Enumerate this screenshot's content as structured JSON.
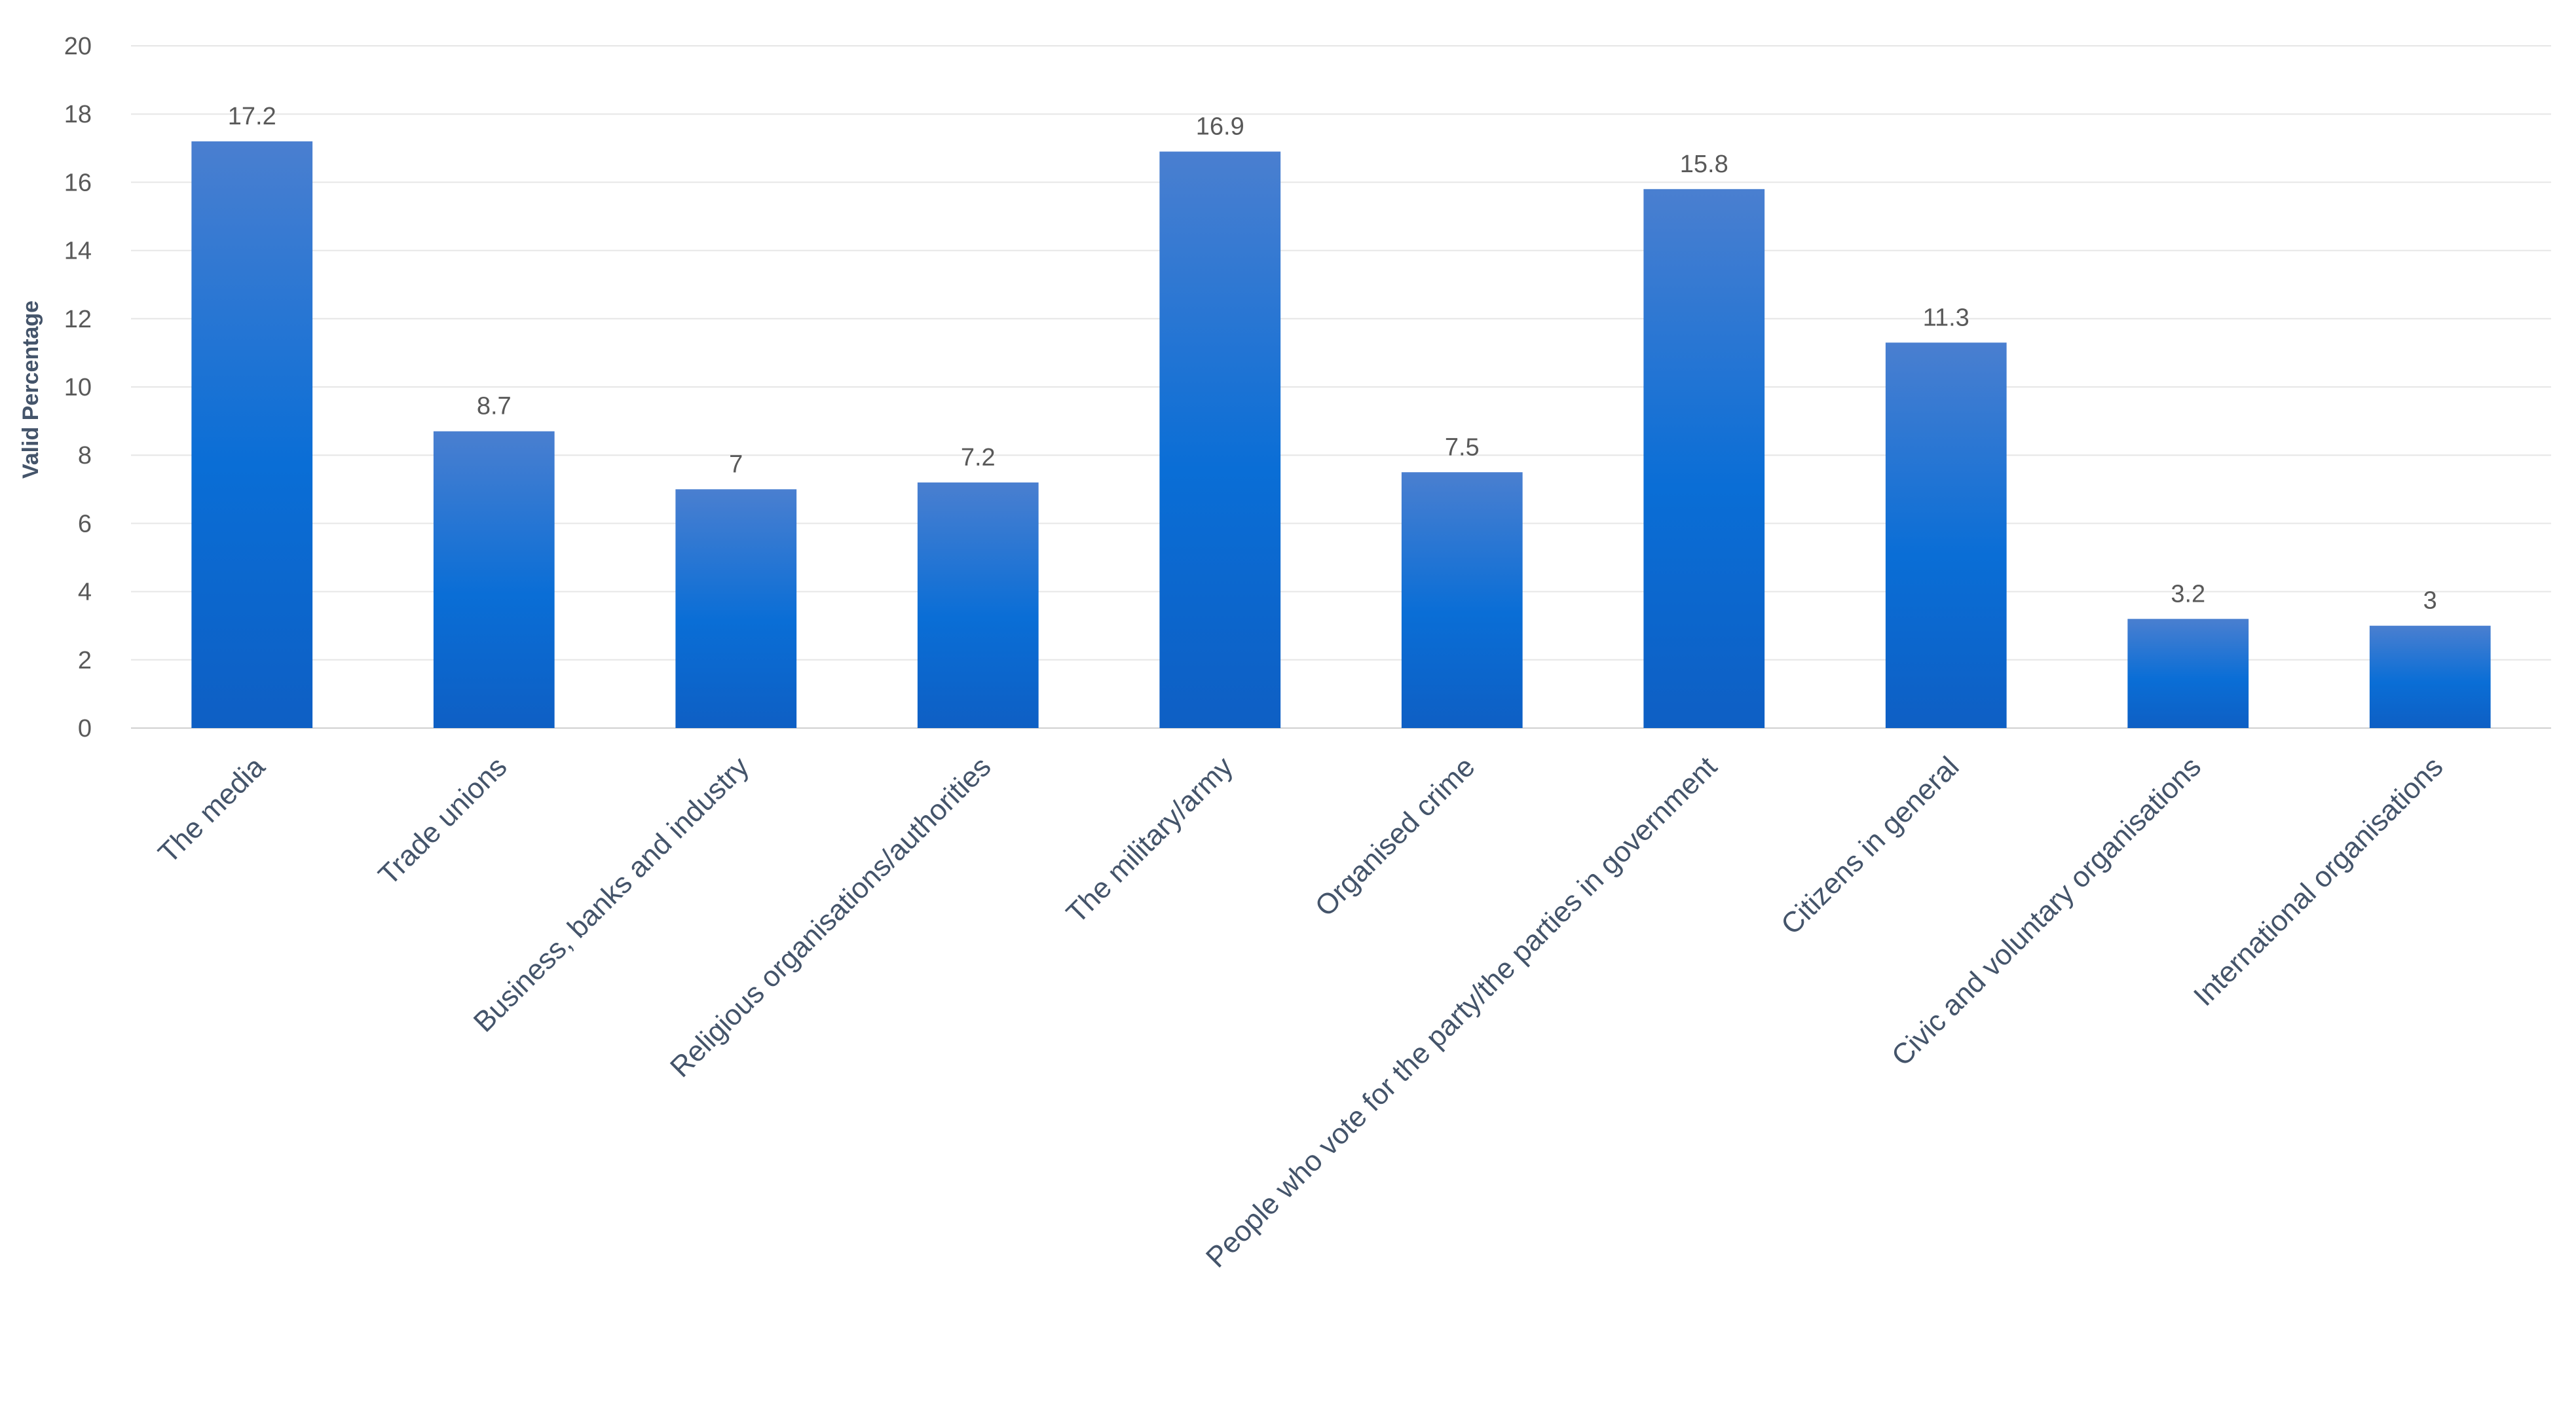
{
  "chart_data": {
    "type": "bar",
    "title": "",
    "xlabel": "",
    "ylabel": "Valid Percentage",
    "ylim": [
      0,
      20
    ],
    "yticks": [
      0,
      2,
      4,
      6,
      8,
      10,
      12,
      14,
      16,
      18,
      20
    ],
    "grid": true,
    "legend": "none",
    "bar_color_top": "#4a7fd0",
    "bar_color_mid": "#0a6ed6",
    "bar_color_bottom": "#0e5fc4",
    "categories": [
      "The media",
      "Trade unions",
      "Business, banks and industry",
      "Religious organisations/authorities",
      "The military/army",
      "Organised crime",
      "People who vote for the party/the parties in government",
      "Citizens in general",
      "Civic and voluntary organisations",
      "International organisations"
    ],
    "values": [
      17.2,
      8.7,
      7,
      7.2,
      16.9,
      7.5,
      15.8,
      11.3,
      3.2,
      3
    ],
    "data_labels": [
      "17.2",
      "8.7",
      "7",
      "7.2",
      "16.9",
      "7.5",
      "15.8",
      "11.3",
      "3.2",
      "3"
    ]
  }
}
